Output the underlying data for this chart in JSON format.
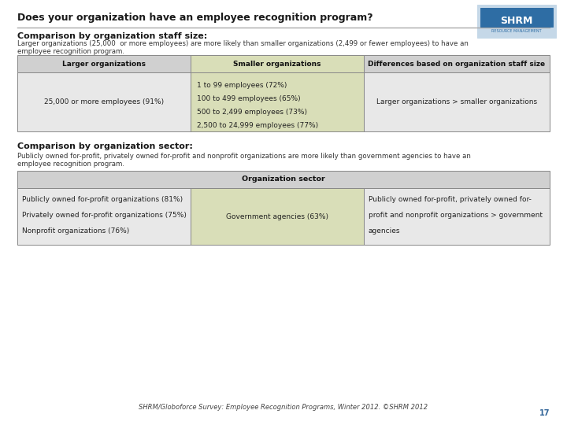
{
  "title": "Does your organization have an employee recognition program?",
  "background_color": "#ffffff",
  "section1_heading": "Comparison by organization staff size:",
  "section1_desc": "Larger organizations (25,000  or more employees) are more likely than smaller organizations (2,499 or fewer employees) to have an\nemployee recognition program.",
  "table1_headers": [
    "Larger organizations",
    "Smaller organizations",
    "Differences based on organization staff size"
  ],
  "table1_header_bg": [
    "#d0d0d0",
    "#d9deb8",
    "#d0d0d0"
  ],
  "table1_col1": [
    "25,000 or more employees (91%)"
  ],
  "table1_col2": [
    "1 to 99 employees (72%)",
    "100 to 499 employees (65%)",
    "500 to 2,499 employees (73%)",
    "2,500 to 24,999 employees (77%)"
  ],
  "table1_col3": [
    "Larger organizations > smaller organizations"
  ],
  "table1_col_bg": [
    "#e8e8e8",
    "#d9deb8",
    "#e8e8e8"
  ],
  "section2_heading": "Comparison by organization sector:",
  "section2_desc": "Publicly owned for-profit, privately owned for-profit and nonprofit organizations are more likely than government agencies to have an\nemployee recognition program.",
  "table2_header": "Organization sector",
  "table2_header_bg": "#d0d0d0",
  "table2_col1": [
    "Publicly owned for-profit organizations (81%)",
    "Privately owned for-profit organizations (75%)",
    "Nonprofit organizations (76%)"
  ],
  "table2_col2": [
    "Government agencies (63%)"
  ],
  "table2_col3_line1": "Publicly owned for-profit, privately owned for-",
  "table2_col3_line2": "profit and nonprofit organizations > government",
  "table2_col3_line3": "agencies",
  "table2_col_bg": [
    "#e8e8e8",
    "#d9deb8",
    "#e8e8e8"
  ],
  "footer": "SHRM/Globoforce Survey: Employee Recognition Programs, Winter 2012. ©SHRM 2012",
  "page_num": "17",
  "shrm_logo_bg": "#2e6da4",
  "shrm_text_bg": "#a8c0d6"
}
